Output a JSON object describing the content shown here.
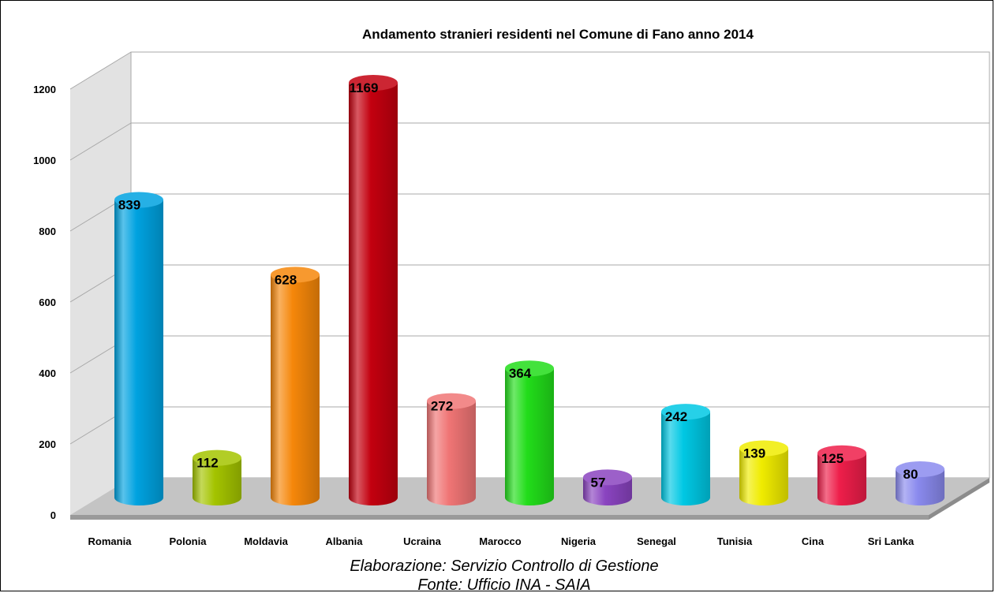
{
  "chart_data": {
    "type": "bar",
    "title": "Andamento stranieri residenti nel Comune di Fano anno 2014",
    "xlabel": "",
    "ylabel": "",
    "ylim": [
      0,
      1200
    ],
    "yticks": [
      0,
      200,
      400,
      600,
      800,
      1000,
      1200
    ],
    "grid": true,
    "legend": "none",
    "categories": [
      "Romania",
      "Polonia",
      "Moldavia",
      "Albania",
      "Ucraina",
      "Marocco",
      "Nigeria",
      "Senegal",
      "Tunisia",
      "Cina",
      "Sri Lanka"
    ],
    "values": [
      839,
      112,
      628,
      1169,
      272,
      364,
      57,
      242,
      139,
      125,
      80
    ],
    "colors": [
      "#00a2e0",
      "#a4c400",
      "#f5870a",
      "#c3000f",
      "#f07575",
      "#22dd1a",
      "#8a44c0",
      "#00c8e4",
      "#f0ec00",
      "#ee1e4a",
      "#8a8aee"
    ]
  },
  "footnotes": {
    "line1": "Elaborazione: Servizio Controllo di Gestione",
    "line2": "Fonte: Ufficio INA - SAIA"
  }
}
